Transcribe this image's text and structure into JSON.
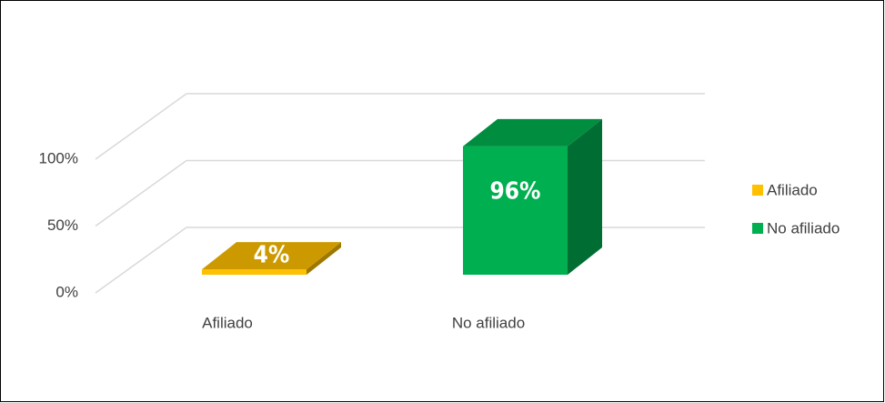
{
  "chart_data": {
    "type": "bar3d",
    "categories": [
      "Afiliado",
      "No afiliado"
    ],
    "values": [
      4,
      96
    ],
    "value_labels": [
      "4%",
      "96%"
    ],
    "colors": [
      "#ffc000",
      "#00b050"
    ],
    "ylim": [
      0,
      100
    ],
    "yticks": [
      {
        "value": 0,
        "label": "0%"
      },
      {
        "value": 50,
        "label": "50%"
      },
      {
        "value": 100,
        "label": "100%"
      }
    ],
    "grid": true,
    "legend": "right"
  }
}
